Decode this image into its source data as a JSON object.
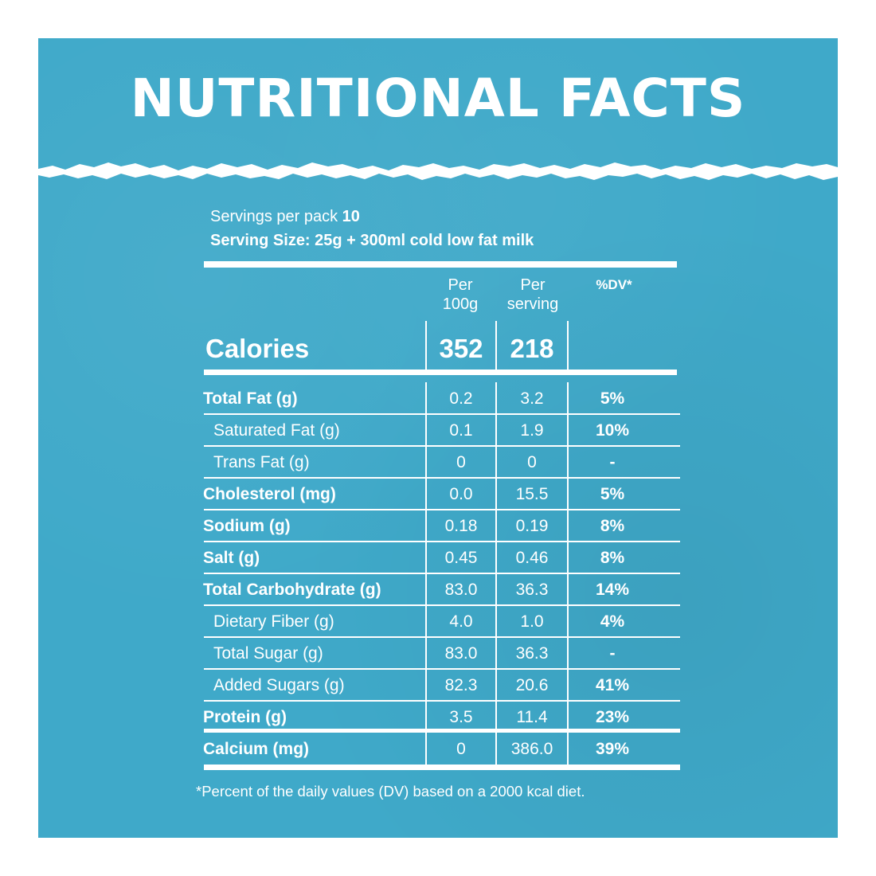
{
  "header": {
    "title": "NUTRITIONAL FACTS"
  },
  "servings": {
    "per_pack_label": "Servings per pack",
    "per_pack_value": "10",
    "serving_size": "Serving Size: 25g + 300ml cold low fat milk"
  },
  "columns": {
    "per100_line1": "Per",
    "per100_line2": "100g",
    "perserving_line1": "Per",
    "perserving_line2": "serving",
    "dv": "%DV*"
  },
  "calories": {
    "label": "Calories",
    "per100": "352",
    "perserving": "218"
  },
  "rows": [
    {
      "label": "Total Fat (g)",
      "per100": "0.2",
      "perserving": "3.2",
      "dv": "5%",
      "bold": true,
      "indent": false
    },
    {
      "label": "Saturated Fat (g)",
      "per100": "0.1",
      "perserving": "1.9",
      "dv": "10%",
      "bold": false,
      "indent": true
    },
    {
      "label": "Trans Fat (g)",
      "per100": "0",
      "perserving": "0",
      "dv": "-",
      "bold": false,
      "indent": true
    },
    {
      "label": "Cholesterol (mg)",
      "per100": "0.0",
      "perserving": "15.5",
      "dv": "5%",
      "bold": true,
      "indent": false
    },
    {
      "label": "Sodium (g)",
      "per100": "0.18",
      "perserving": "0.19",
      "dv": "8%",
      "bold": true,
      "indent": false
    },
    {
      "label": "Salt (g)",
      "per100": "0.45",
      "perserving": "0.46",
      "dv": "8%",
      "bold": true,
      "indent": false
    },
    {
      "label": "Total Carbohydrate (g)",
      "per100": "83.0",
      "perserving": "36.3",
      "dv": "14%",
      "bold": true,
      "indent": false
    },
    {
      "label": "Dietary Fiber (g)",
      "per100": "4.0",
      "perserving": "1.0",
      "dv": "4%",
      "bold": false,
      "indent": true
    },
    {
      "label": "Total Sugar (g)",
      "per100": "83.0",
      "perserving": "36.3",
      "dv": "-",
      "bold": false,
      "indent": true
    },
    {
      "label": "Added Sugars (g)",
      "per100": "82.3",
      "perserving": "20.6",
      "dv": "41%",
      "bold": false,
      "indent": true
    },
    {
      "label": "Protein (g)",
      "per100": "3.5",
      "perserving": "11.4",
      "dv": "23%",
      "bold": true,
      "indent": false
    },
    {
      "label": "Calcium (mg)",
      "per100": "0",
      "perserving": "386.0",
      "dv": "39%",
      "bold": true,
      "indent": false
    }
  ],
  "footnote": "*Percent of the daily values (DV) based on a 2000 kcal diet.",
  "colors": {
    "panel": "#3fa9c9",
    "text": "#ffffff"
  }
}
